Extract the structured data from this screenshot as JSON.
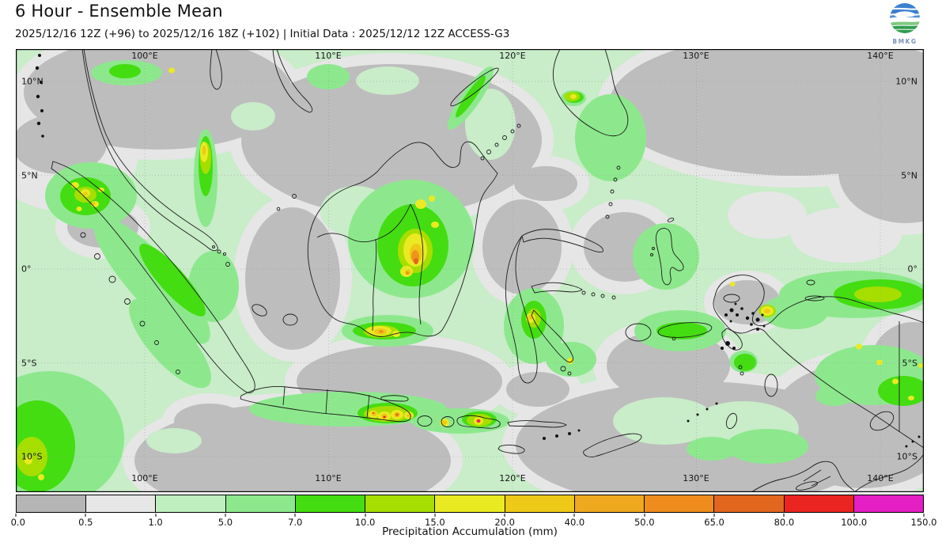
{
  "header": {
    "title": "6 Hour - Ensemble Mean",
    "subtitle": "2025/12/16 12Z (+96) to 2025/12/16 18Z (+102) | Initial Data : 2025/12/12 12Z ACCESS-G3",
    "logo_text": "BMKG"
  },
  "map": {
    "lon_labels": [
      "100°E",
      "110°E",
      "120°E",
      "130°E",
      "140°E"
    ],
    "lat_labels": [
      "10°N",
      "5°N",
      "0°",
      "5°S",
      "10°S"
    ]
  },
  "colorbar": {
    "label": "Precipitation Accumulation (mm)",
    "ticks": [
      "0.0",
      "0.5",
      "1.0",
      "5.0",
      "7.0",
      "10.0",
      "15.0",
      "20.0",
      "40.0",
      "50.0",
      "65.0",
      "80.0",
      "100.0",
      "150.0"
    ],
    "segment_colors": [
      "#b5b5b5",
      "#e7e7e7",
      "#bfeebf",
      "#8de88d",
      "#44dd11",
      "#a6de00",
      "#eaea22",
      "#eec917",
      "#f0a81e",
      "#ee8d1e",
      "#e2661e",
      "#ea2420",
      "#e41fc3"
    ],
    "legend_meanings": [
      "<0.5 mm",
      "0.5-1",
      "1-5",
      "5-7",
      "7-10",
      "10-15",
      "15-20",
      "20-40",
      "40-50",
      "50-65",
      "65-80",
      "80-100",
      "100-150"
    ]
  }
}
